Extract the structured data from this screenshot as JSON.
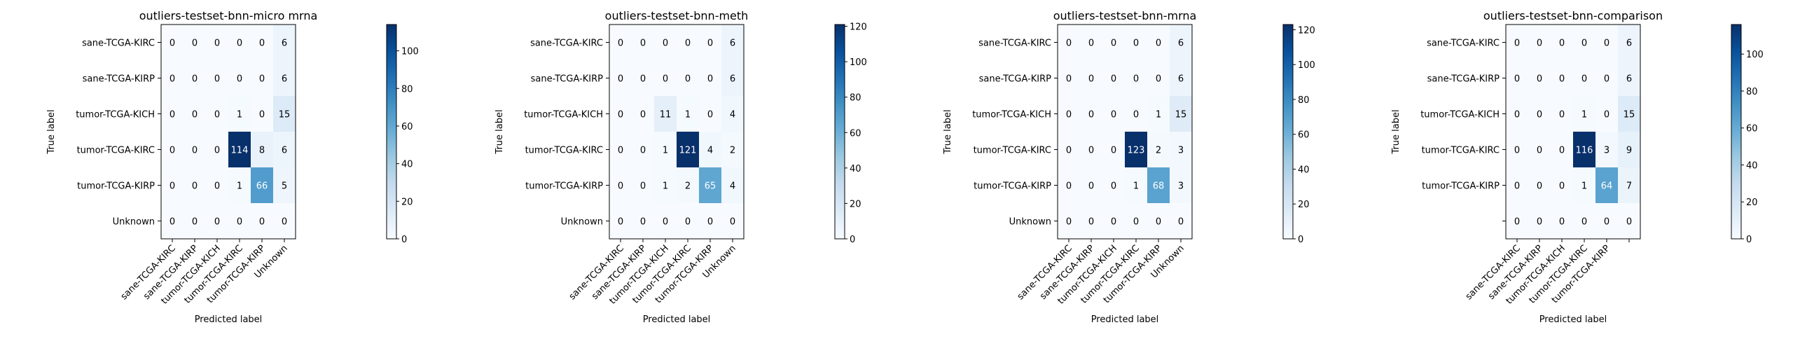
{
  "chart_data": [
    {
      "type": "heatmap",
      "title": "outliers-testset-bnn-micro mrna",
      "xlabel": "Predicted label",
      "ylabel": "True label",
      "row_labels": [
        "sane-TCGA-KIRC",
        "sane-TCGA-KIRP",
        "tumor-TCGA-KICH",
        "tumor-TCGA-KIRC",
        "tumor-TCGA-KIRP",
        "Unknown"
      ],
      "col_labels": [
        "sane-TCGA-KIRC",
        "sane-TCGA-KIRP",
        "tumor-TCGA-KICH",
        "tumor-TCGA-KIRC",
        "tumor-TCGA-KIRP",
        "Unknown"
      ],
      "matrix": [
        [
          0,
          0,
          0,
          0,
          0,
          6
        ],
        [
          0,
          0,
          0,
          0,
          0,
          6
        ],
        [
          0,
          0,
          0,
          1,
          0,
          15
        ],
        [
          0,
          0,
          0,
          114,
          8,
          6
        ],
        [
          0,
          0,
          0,
          1,
          66,
          5
        ],
        [
          0,
          0,
          0,
          0,
          0,
          0
        ]
      ],
      "colorbar": {
        "min": 0,
        "max": 114,
        "ticks": [
          0,
          20,
          40,
          60,
          80,
          100
        ]
      },
      "colormap": "Blues"
    },
    {
      "type": "heatmap",
      "title": "outliers-testset-bnn-meth",
      "xlabel": "Predicted label",
      "ylabel": "True label",
      "row_labels": [
        "sane-TCGA-KIRC",
        "sane-TCGA-KIRP",
        "tumor-TCGA-KICH",
        "tumor-TCGA-KIRC",
        "tumor-TCGA-KIRP",
        "Unknown"
      ],
      "col_labels": [
        "sane-TCGA-KIRC",
        "sane-TCGA-KIRP",
        "tumor-TCGA-KICH",
        "tumor-TCGA-KIRC",
        "tumor-TCGA-KIRP",
        "Unknown"
      ],
      "matrix": [
        [
          0,
          0,
          0,
          0,
          0,
          6
        ],
        [
          0,
          0,
          0,
          0,
          0,
          6
        ],
        [
          0,
          0,
          11,
          1,
          0,
          4
        ],
        [
          0,
          0,
          1,
          121,
          4,
          2
        ],
        [
          0,
          0,
          1,
          2,
          65,
          4
        ],
        [
          0,
          0,
          0,
          0,
          0,
          0
        ]
      ],
      "colorbar": {
        "min": 0,
        "max": 121,
        "ticks": [
          0,
          20,
          40,
          60,
          80,
          100,
          120
        ]
      },
      "colormap": "Blues"
    },
    {
      "type": "heatmap",
      "title": "outliers-testset-bnn-mrna",
      "xlabel": "Predicted label",
      "ylabel": "True label",
      "row_labels": [
        "sane-TCGA-KIRC",
        "sane-TCGA-KIRP",
        "tumor-TCGA-KICH",
        "tumor-TCGA-KIRC",
        "tumor-TCGA-KIRP",
        "Unknown"
      ],
      "col_labels": [
        "sane-TCGA-KIRC",
        "sane-TCGA-KIRP",
        "tumor-TCGA-KICH",
        "tumor-TCGA-KIRC",
        "tumor-TCGA-KIRP",
        "Unknown"
      ],
      "matrix": [
        [
          0,
          0,
          0,
          0,
          0,
          6
        ],
        [
          0,
          0,
          0,
          0,
          0,
          6
        ],
        [
          0,
          0,
          0,
          0,
          1,
          15
        ],
        [
          0,
          0,
          0,
          123,
          2,
          3
        ],
        [
          0,
          0,
          0,
          1,
          68,
          3
        ],
        [
          0,
          0,
          0,
          0,
          0,
          0
        ]
      ],
      "colorbar": {
        "min": 0,
        "max": 123,
        "ticks": [
          0,
          20,
          40,
          60,
          80,
          100,
          120
        ]
      },
      "colormap": "Blues"
    },
    {
      "type": "heatmap",
      "title": "outliers-testset-bnn-comparison",
      "xlabel": "Predicted label",
      "ylabel": "True label",
      "row_labels": [
        "sane-TCGA-KIRC",
        "sane-TCGA-KIRP",
        "tumor-TCGA-KICH",
        "tumor-TCGA-KIRC",
        "tumor-TCGA-KIRP",
        ""
      ],
      "col_labels": [
        "sane-TCGA-KIRC",
        "sane-TCGA-KIRP",
        "tumor-TCGA-KICH",
        "tumor-TCGA-KIRC",
        "tumor-TCGA-KIRP",
        ""
      ],
      "matrix": [
        [
          0,
          0,
          0,
          0,
          0,
          6
        ],
        [
          0,
          0,
          0,
          0,
          0,
          6
        ],
        [
          0,
          0,
          0,
          1,
          0,
          15
        ],
        [
          0,
          0,
          0,
          116,
          3,
          9
        ],
        [
          0,
          0,
          0,
          1,
          64,
          7
        ],
        [
          0,
          0,
          0,
          0,
          0,
          0
        ]
      ],
      "colorbar": {
        "min": 0,
        "max": 116,
        "ticks": [
          0,
          20,
          40,
          60,
          80,
          100
        ]
      },
      "colormap": "Blues"
    }
  ]
}
